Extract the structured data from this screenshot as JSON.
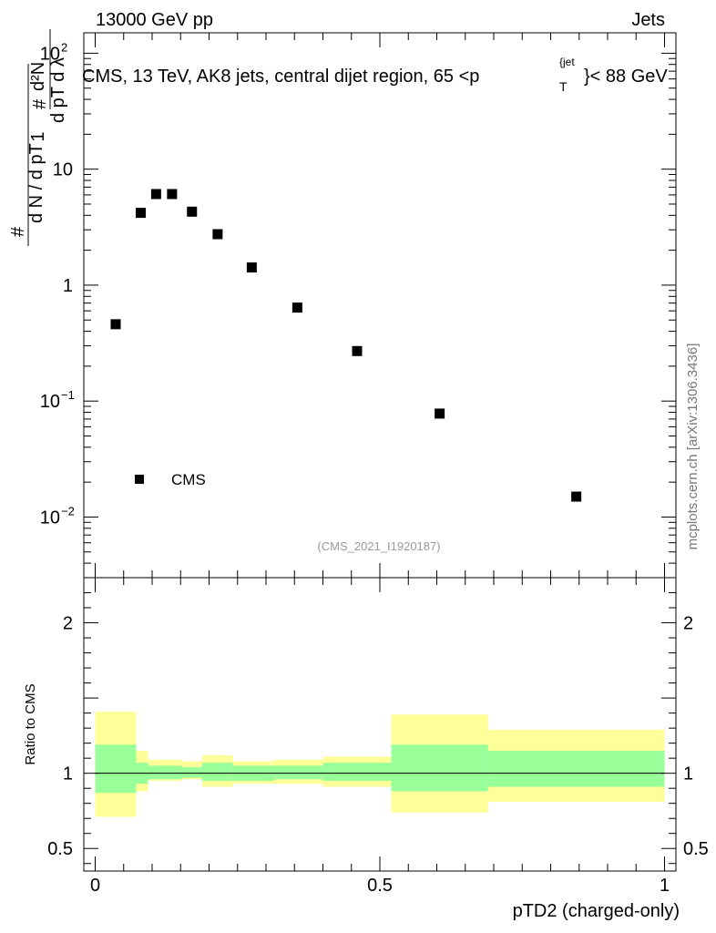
{
  "header": {
    "left": "13000 GeV pp",
    "right": "Jets",
    "side_label": "mcplots.cern.ch [arXiv:1306.3436]",
    "analysis_id": "(CMS_2021_I1920187)"
  },
  "chart_data": [
    {
      "type": "scatter",
      "title": "CMS, 13 TeV, AK8 jets, central dijet region, 65 <p_T^{jet}< 88 GeV",
      "ylabel_parts": {
        "inner_num": "d²N",
        "inner_den": "d p_T d λ",
        "outer_den": "d N / d p_T",
        "hash": "#",
        "one": "1"
      },
      "yscale": "log",
      "ylim": [
        0.003,
        150
      ],
      "xlim": [
        -0.02,
        1.02
      ],
      "y_ticks": [
        {
          "value": 0.01,
          "base": "10",
          "exp": "−2"
        },
        {
          "value": 0.1,
          "base": "10",
          "exp": "−1"
        },
        {
          "value": 1,
          "label": "1"
        },
        {
          "value": 10,
          "label": "10"
        },
        {
          "value": 100,
          "base": "10",
          "exp": "2"
        }
      ],
      "legend": {
        "position": "lower-left",
        "label": "CMS"
      },
      "series": [
        {
          "name": "CMS",
          "x": [
            0.036,
            0.08,
            0.107,
            0.135,
            0.17,
            0.215,
            0.275,
            0.355,
            0.46,
            0.605,
            0.845
          ],
          "values": [
            0.46,
            4.2,
            6.1,
            6.1,
            4.3,
            2.75,
            1.42,
            0.64,
            0.27,
            0.078,
            0.015
          ]
        }
      ]
    },
    {
      "type": "area",
      "ylabel": "Ratio to CMS",
      "xlabel": "pTD2 (charged-only)",
      "xlim": [
        -0.02,
        1.02
      ],
      "ylim": [
        0.35,
        2.3
      ],
      "reference_line": 1,
      "y_ticks": [
        {
          "value": 0.5,
          "label": "0.5"
        },
        {
          "value": 1,
          "label": "1"
        },
        {
          "value": 2,
          "label": "2"
        }
      ],
      "x_ticks": [
        {
          "value": 0,
          "label": "0"
        },
        {
          "value": 0.5,
          "label": "0.5"
        },
        {
          "value": 1,
          "label": "1"
        }
      ],
      "bands": {
        "outer_color": "#ffff99",
        "inner_color": "#99ff99",
        "bins": [
          {
            "lo": 0.0,
            "hi": 0.072,
            "outer": [
              0.71,
              1.41
            ],
            "inner": [
              0.87,
              1.19
            ]
          },
          {
            "lo": 0.072,
            "hi": 0.093,
            "outer": [
              0.88,
              1.15
            ],
            "inner": [
              0.93,
              1.07
            ]
          },
          {
            "lo": 0.093,
            "hi": 0.152,
            "outer": [
              0.95,
              1.09
            ],
            "inner": [
              0.96,
              1.05
            ]
          },
          {
            "lo": 0.152,
            "hi": 0.188,
            "outer": [
              0.96,
              1.08
            ],
            "inner": [
              0.97,
              1.04
            ]
          },
          {
            "lo": 0.188,
            "hi": 0.242,
            "outer": [
              0.91,
              1.12
            ],
            "inner": [
              0.95,
              1.07
            ]
          },
          {
            "lo": 0.242,
            "hi": 0.315,
            "outer": [
              0.93,
              1.08
            ],
            "inner": [
              0.95,
              1.05
            ]
          },
          {
            "lo": 0.315,
            "hi": 0.4,
            "outer": [
              0.93,
              1.09
            ],
            "inner": [
              0.96,
              1.05
            ]
          },
          {
            "lo": 0.4,
            "hi": 0.52,
            "outer": [
              0.91,
              1.11
            ],
            "inner": [
              0.95,
              1.07
            ]
          },
          {
            "lo": 0.52,
            "hi": 0.69,
            "outer": [
              0.74,
              1.39
            ],
            "inner": [
              0.88,
              1.19
            ]
          },
          {
            "lo": 0.69,
            "hi": 1.0,
            "outer": [
              0.81,
              1.29
            ],
            "inner": [
              0.91,
              1.15
            ]
          }
        ]
      }
    }
  ]
}
